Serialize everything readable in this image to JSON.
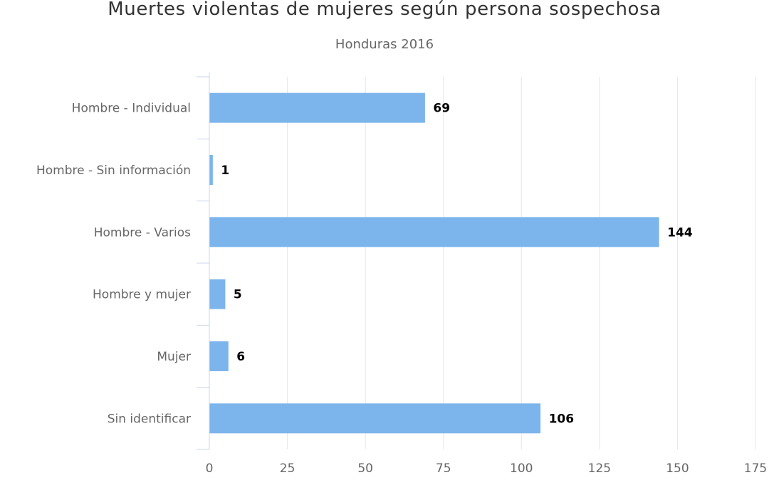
{
  "chart_data": {
    "type": "bar",
    "orientation": "horizontal",
    "title": "Muertes violentas de mujeres según persona sospechosa",
    "subtitle": "Honduras 2016",
    "categories": [
      "Hombre - Individual",
      "Hombre - Sin información",
      "Hombre - Varios",
      "Hombre y mujer",
      "Mujer",
      "Sin identificar"
    ],
    "values": [
      69,
      1,
      144,
      5,
      6,
      106
    ],
    "data_labels": [
      "69",
      "1",
      "144",
      "5",
      "6",
      "106"
    ],
    "xlim": [
      0,
      175
    ],
    "ticks": [
      0,
      25,
      50,
      75,
      100,
      125,
      150,
      175
    ],
    "tick_labels": [
      "0",
      "25",
      "50",
      "75",
      "100",
      "125",
      "150",
      "175"
    ],
    "grid": true,
    "legend": false,
    "colors": {
      "bar": "#7cb5ec",
      "grid": "#e6e6e6",
      "axis": "#ccd6eb",
      "label": "#666666",
      "data_label": "#000000"
    }
  }
}
